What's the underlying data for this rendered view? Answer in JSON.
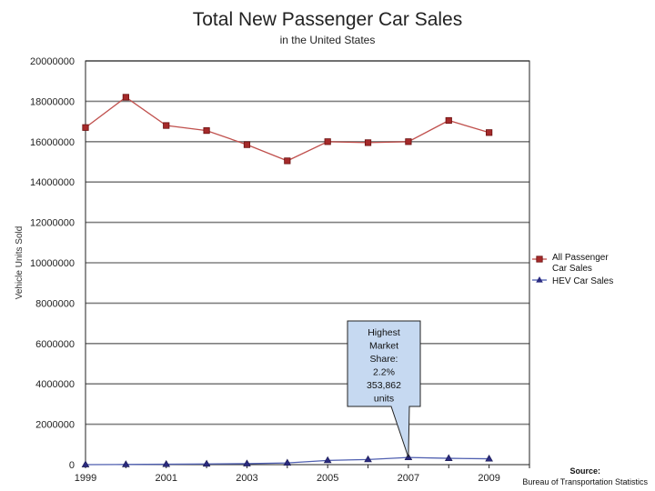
{
  "chart_data": {
    "type": "line",
    "title": "Total New Passenger Car Sales",
    "subtitle": "in the United States",
    "xlabel": "",
    "ylabel": "Vehicle Units Sold",
    "ylim": [
      0,
      20000000
    ],
    "xlim": [
      1999,
      2010
    ],
    "yticks": [
      "0",
      "2000000",
      "4000000",
      "6000000",
      "8000000",
      "10000000",
      "12000000",
      "14000000",
      "16000000",
      "18000000",
      "20000000"
    ],
    "xticks": [
      "1999",
      "2001",
      "2003",
      "2005",
      "2007",
      "2009"
    ],
    "grid": "horizontal",
    "legend_position": "right",
    "x": [
      1999,
      2000,
      2001,
      2002,
      2003,
      2004,
      2005,
      2006,
      2007,
      2008,
      2009
    ],
    "series": [
      {
        "name": "All Passenger Car Sales",
        "color": "#c0504d",
        "marker": "square",
        "values": [
          16700000,
          18200000,
          16800000,
          16550000,
          15850000,
          15050000,
          16000000,
          15950000,
          16000000,
          17050000,
          16450000
        ]
      },
      {
        "name": "HEV Car Sales",
        "color": "#4f5fb0",
        "marker": "triangle",
        "values": [
          17,
          9350,
          20287,
          35000,
          47600,
          84199,
          209711,
          252636,
          353862,
          312386,
          290271
        ]
      }
    ],
    "annotation": {
      "text": [
        "Highest",
        "Market",
        "Share:",
        "2.2%",
        "353,862",
        "units"
      ],
      "target_x": 2007,
      "target_value": 353862
    }
  },
  "source": {
    "label": "Source:",
    "text": "Bureau of Transportation Statistics"
  }
}
